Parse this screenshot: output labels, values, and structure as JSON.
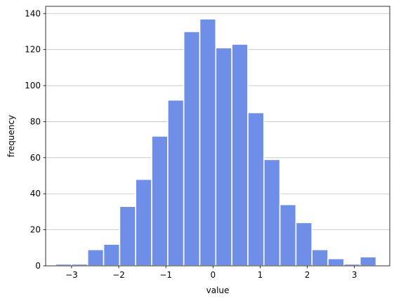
{
  "chart_data": {
    "type": "bar",
    "xlabel": "value",
    "ylabel": "frequency",
    "xlim": [
      -3.55,
      3.75
    ],
    "ylim": [
      0,
      144
    ],
    "grid": "horizontal",
    "bar_color": "#6f8ee8",
    "bar_edge_color": "#ffffff",
    "grid_color": "#c0c0c0",
    "x_ticks": [
      {
        "value": -3,
        "label": "−3"
      },
      {
        "value": -2,
        "label": "−2"
      },
      {
        "value": -1,
        "label": "−1"
      },
      {
        "value": 0,
        "label": "0"
      },
      {
        "value": 1,
        "label": "1"
      },
      {
        "value": 2,
        "label": "2"
      },
      {
        "value": 3,
        "label": "3"
      }
    ],
    "y_ticks": [
      {
        "value": 0,
        "label": "0"
      },
      {
        "value": 20,
        "label": "20"
      },
      {
        "value": 40,
        "label": "40"
      },
      {
        "value": 60,
        "label": "60"
      },
      {
        "value": 80,
        "label": "80"
      },
      {
        "value": 100,
        "label": "100"
      },
      {
        "value": 120,
        "label": "120"
      },
      {
        "value": 140,
        "label": "140"
      }
    ],
    "bins": [
      {
        "start": -3.34,
        "end": -3.0,
        "count": 1
      },
      {
        "start": -3.0,
        "end": -2.66,
        "count": 1
      },
      {
        "start": -2.66,
        "end": -2.32,
        "count": 9
      },
      {
        "start": -2.32,
        "end": -1.98,
        "count": 12
      },
      {
        "start": -1.98,
        "end": -1.64,
        "count": 33
      },
      {
        "start": -1.64,
        "end": -1.3,
        "count": 48
      },
      {
        "start": -1.3,
        "end": -0.96,
        "count": 72
      },
      {
        "start": -0.96,
        "end": -0.62,
        "count": 92
      },
      {
        "start": -0.62,
        "end": -0.28,
        "count": 130
      },
      {
        "start": -0.28,
        "end": 0.06,
        "count": 137
      },
      {
        "start": 0.06,
        "end": 0.4,
        "count": 121
      },
      {
        "start": 0.4,
        "end": 0.74,
        "count": 123
      },
      {
        "start": 0.74,
        "end": 1.08,
        "count": 85
      },
      {
        "start": 1.08,
        "end": 1.42,
        "count": 59
      },
      {
        "start": 1.42,
        "end": 1.76,
        "count": 34
      },
      {
        "start": 1.76,
        "end": 2.1,
        "count": 24
      },
      {
        "start": 2.1,
        "end": 2.44,
        "count": 9
      },
      {
        "start": 2.44,
        "end": 2.78,
        "count": 4
      },
      {
        "start": 2.78,
        "end": 3.12,
        "count": 1
      },
      {
        "start": 3.12,
        "end": 3.46,
        "count": 5
      }
    ]
  }
}
